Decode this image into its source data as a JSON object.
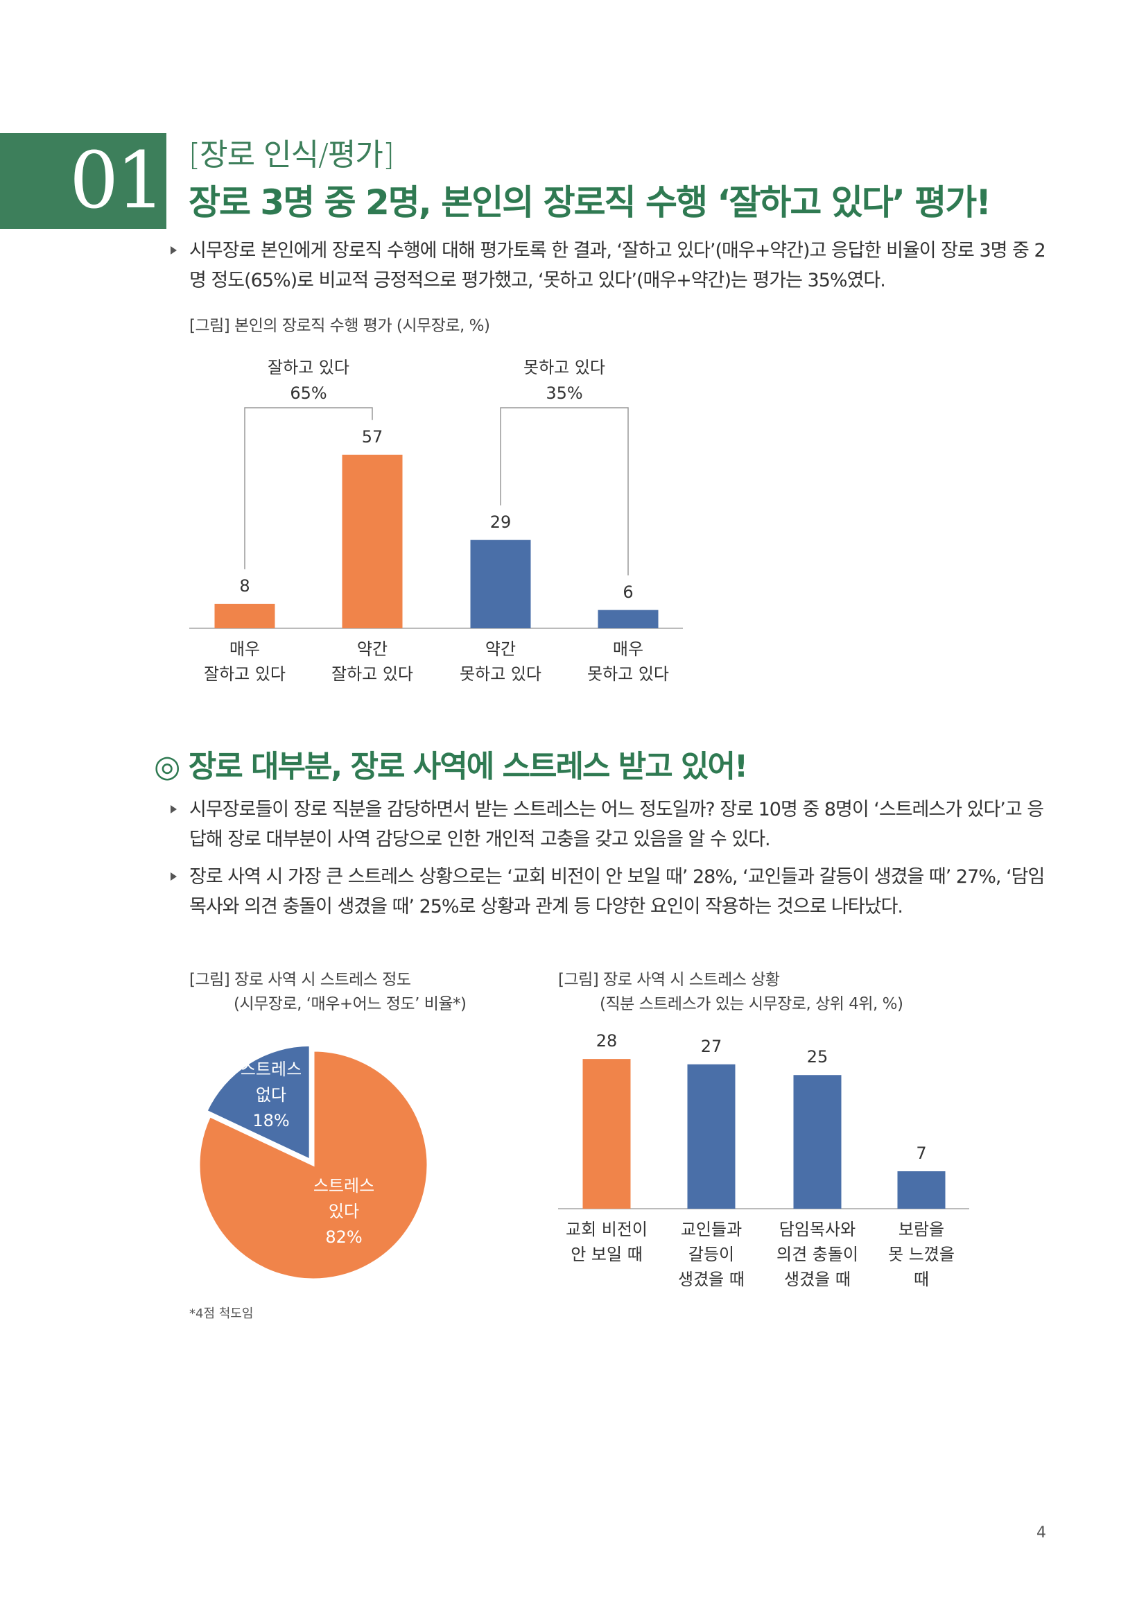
{
  "header": {
    "number": "01",
    "category": "[장로 인식/평가]",
    "title": "장로 3명 중 2명, 본인의 장로직 수행 ‘잘하고 있다’ 평가!"
  },
  "section1": {
    "bullets": [
      "시무장로 본인에게 장로직 수행에 대해 평가토록 한 결과, ‘잘하고 있다’(매우+약간)고 응답한 비율이 장로 3명 중 2명 정도(65%)로 비교적 긍정적으로 평가했고, ‘못하고 있다’(매우+약간)는 평가는 35%였다."
    ],
    "figure": {
      "type": "bar",
      "caption": "[그림] 본인의 장로직 수행 평가 (시무장로, %)",
      "categories": [
        "매우\n잘하고 있다",
        "약간\n잘하고 있다",
        "약간\n못하고 있다",
        "매우\n못하고 있다"
      ],
      "values": [
        8,
        57,
        29,
        6
      ],
      "colors": [
        "#f0844a",
        "#f0844a",
        "#4a6fa8",
        "#4a6fa8"
      ],
      "groups": [
        {
          "name": "잘하고 있다",
          "label": "65%"
        },
        {
          "name": "못하고 있다",
          "label": "35%"
        }
      ]
    }
  },
  "section2": {
    "heading": "◎ 장로 대부분, 장로 사역에 스트레스 받고 있어!",
    "bullets": [
      "시무장로들이 장로 직분을 감당하면서 받는 스트레스는 어느 정도일까? 장로 10명 중 8명이 ‘스트레스가 있다’고 응답해 장로 대부분이 사역 감당으로 인한 개인적 고충을 갖고 있음을 알 수 있다.",
      "장로 사역 시 가장 큰 스트레스 상황으로는 ‘교회 비전이 안 보일 때’ 28%, ‘교인들과 갈등이 생겼을 때’ 27%, ‘담임목사와 의견 충돌이 생겼을 때’ 25%로 상황과 관계 등 다양한 요인이 작용하는 것으로 나타났다."
    ],
    "pie": {
      "type": "pie",
      "caption": "[그림] 장로 사역 시 스트레스 정도",
      "subtitle": "(시무장로, ‘매우+어느 정도’ 비율*)",
      "categories": [
        "스트레스\n있다",
        "스트레스\n없다"
      ],
      "values": [
        82,
        18
      ],
      "value_labels": [
        "82%",
        "18%"
      ],
      "colors": [
        "#f0844a",
        "#4a6fa8"
      ],
      "footnote": "*4점 척도임"
    },
    "bar": {
      "type": "bar",
      "caption": "[그림] 장로 사역 시 스트레스 상황",
      "subtitle": "(직분 스트레스가 있는 시무장로, 상위 4위, %)",
      "categories": [
        "교회 비전이\n안 보일 때",
        "교인들과\n갈등이\n생겼을 때",
        "담임목사와\n의견 충돌이\n생겼을 때",
        "보람을\n못 느꼈을\n때"
      ],
      "values": [
        28,
        27,
        25,
        7
      ],
      "colors": [
        "#f0844a",
        "#4a6fa8",
        "#4a6fa8",
        "#4a6fa8"
      ]
    }
  },
  "page_number": "4"
}
